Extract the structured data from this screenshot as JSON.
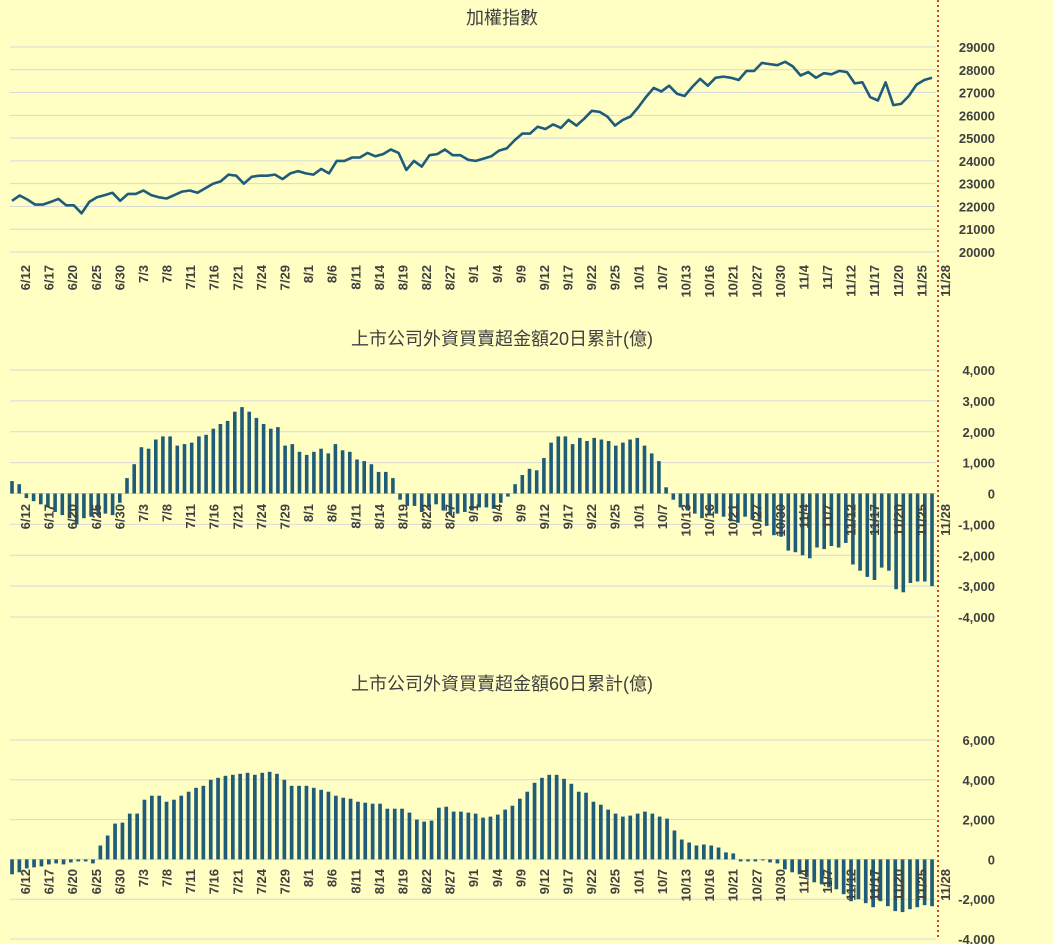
{
  "chart_data": [
    {
      "type": "line",
      "title": "加權指數",
      "xlabel": "",
      "ylabel": "",
      "ylim": [
        20000,
        29000
      ],
      "yticks": [
        "20000",
        "21000",
        "22000",
        "23000",
        "24000",
        "25000",
        "26000",
        "27000",
        "28000",
        "29000"
      ],
      "tick_labels": [
        "6/12",
        "6/17",
        "6/20",
        "6/25",
        "6/30",
        "7/3",
        "7/8",
        "7/11",
        "7/16",
        "7/21",
        "7/24",
        "7/29",
        "8/1",
        "8/6",
        "8/11",
        "8/14",
        "8/19",
        "8/22",
        "8/27",
        "9/1",
        "9/4",
        "9/9",
        "9/12",
        "9/17",
        "9/22",
        "9/25",
        "10/1",
        "10/7",
        "10/13",
        "10/16",
        "10/21",
        "10/27",
        "10/30",
        "11/4",
        "11/7",
        "11/12",
        "11/17",
        "11/20",
        "11/25",
        "11/28"
      ],
      "series": [
        {
          "name": "加權指數",
          "color": "#1F5C7A",
          "values": [
            22250,
            22480,
            22300,
            22080,
            22080,
            22200,
            22330,
            22050,
            22050,
            21700,
            22200,
            22400,
            22500,
            22600,
            22250,
            22550,
            22550,
            22700,
            22500,
            22400,
            22350,
            22500,
            22650,
            22700,
            22600,
            22800,
            23000,
            23100,
            23400,
            23350,
            23000,
            23300,
            23350,
            23350,
            23400,
            23200,
            23450,
            23550,
            23450,
            23400,
            23650,
            23450,
            24000,
            24000,
            24150,
            24150,
            24350,
            24200,
            24300,
            24500,
            24350,
            23600,
            24000,
            23750,
            24250,
            24300,
            24500,
            24250,
            24250,
            24050,
            24000,
            24100,
            24200,
            24450,
            24550,
            24900,
            25200,
            25200,
            25500,
            25400,
            25600,
            25450,
            25800,
            25550,
            25850,
            26200,
            26150,
            25950,
            25550,
            25800,
            25950,
            26350,
            26800,
            27200,
            27050,
            27300,
            26950,
            26850,
            27250,
            27600,
            27300,
            27650,
            27700,
            27650,
            27550,
            27950,
            27950,
            28300,
            28250,
            28200,
            28350,
            28150,
            27750,
            27900,
            27650,
            27850,
            27800,
            27950,
            27900,
            27400,
            27450,
            26800,
            26650,
            27450,
            26450,
            26500,
            26850,
            27350,
            27550,
            27650
          ]
        }
      ]
    },
    {
      "type": "bar",
      "title": "上市公司外資買賣超金額20日累計(億)",
      "xlabel": "",
      "ylabel": "",
      "ylim": [
        -4000,
        4000
      ],
      "yticks": [
        "4,000",
        "3,000",
        "2,000",
        "1,000",
        "0",
        "-1,000",
        "-2,000",
        "-3,000",
        "-4,000"
      ],
      "tick_labels": [
        "6/12",
        "6/17",
        "6/20",
        "6/25",
        "6/30",
        "7/3",
        "7/8",
        "7/11",
        "7/16",
        "7/21",
        "7/24",
        "7/29",
        "8/1",
        "8/6",
        "8/11",
        "8/14",
        "8/19",
        "8/22",
        "8/27",
        "9/1",
        "9/4",
        "9/9",
        "9/12",
        "9/17",
        "9/22",
        "9/25",
        "10/1",
        "10/7",
        "10/13",
        "10/16",
        "10/21",
        "10/27",
        "10/30",
        "11/4",
        "11/7",
        "11/12",
        "11/17",
        "11/20",
        "11/25",
        "11/28"
      ],
      "series": [
        {
          "name": "20日累計",
          "color": "#1F5C7A",
          "values": [
            400,
            300,
            -150,
            -250,
            -350,
            -450,
            -600,
            -700,
            -800,
            -1000,
            -800,
            -750,
            -700,
            -650,
            -700,
            -300,
            500,
            950,
            1500,
            1450,
            1750,
            1850,
            1850,
            1550,
            1600,
            1650,
            1850,
            1900,
            2100,
            2250,
            2350,
            2650,
            2800,
            2650,
            2450,
            2250,
            2100,
            2150,
            1550,
            1600,
            1350,
            1250,
            1350,
            1450,
            1300,
            1600,
            1400,
            1350,
            1100,
            1050,
            950,
            700,
            700,
            500,
            -200,
            -400,
            -400,
            -600,
            -450,
            -350,
            -550,
            -700,
            -650,
            -600,
            -550,
            -450,
            -450,
            -500,
            -300,
            -100,
            300,
            600,
            800,
            750,
            1150,
            1650,
            1850,
            1850,
            1600,
            1800,
            1700,
            1800,
            1750,
            1700,
            1550,
            1650,
            1750,
            1800,
            1550,
            1300,
            1050,
            200,
            -200,
            -450,
            -550,
            -650,
            -800,
            -700,
            -650,
            -750,
            -900,
            -950,
            -750,
            -850,
            -900,
            -1050,
            -1350,
            -1400,
            -1850,
            -1900,
            -2000,
            -2100,
            -1750,
            -1800,
            -1700,
            -1750,
            -1600,
            -2300,
            -2500,
            -2700,
            -2800,
            -2400,
            -2500,
            -3100,
            -3200,
            -2900,
            -2850,
            -2850,
            -3000
          ]
        }
      ]
    },
    {
      "type": "bar",
      "title": "上市公司外資買賣超金額60日累計(億)",
      "xlabel": "",
      "ylabel": "",
      "ylim": [
        -4000,
        6000
      ],
      "yticks": [
        "6,000",
        "4,000",
        "2,000",
        "0",
        "-2,000",
        "-4,000"
      ],
      "tick_labels": [
        "6/12",
        "6/17",
        "6/20",
        "6/25",
        "6/30",
        "7/3",
        "7/8",
        "7/11",
        "7/16",
        "7/21",
        "7/24",
        "7/29",
        "8/1",
        "8/6",
        "8/11",
        "8/14",
        "8/19",
        "8/22",
        "8/27",
        "9/1",
        "9/4",
        "9/9",
        "9/12",
        "9/17",
        "9/22",
        "9/25",
        "10/1",
        "10/7",
        "10/13",
        "10/16",
        "10/21",
        "10/27",
        "10/30",
        "11/4",
        "11/7",
        "11/12",
        "11/17",
        "11/20",
        "11/25",
        "11/28"
      ],
      "series": [
        {
          "name": "60日累計",
          "color": "#1F5C7A",
          "values": [
            -750,
            -650,
            -450,
            -400,
            -350,
            -250,
            -200,
            -250,
            -150,
            -100,
            -100,
            -200,
            700,
            1200,
            1800,
            1850,
            2300,
            2300,
            3000,
            3200,
            3200,
            2900,
            3000,
            3200,
            3400,
            3600,
            3700,
            4000,
            4100,
            4200,
            4250,
            4300,
            4350,
            4250,
            4350,
            4400,
            4300,
            4000,
            3700,
            3700,
            3700,
            3600,
            3500,
            3400,
            3200,
            3100,
            3050,
            2900,
            2850,
            2800,
            2800,
            2550,
            2550,
            2550,
            2350,
            2000,
            1900,
            1950,
            2600,
            2650,
            2400,
            2400,
            2350,
            2300,
            2100,
            2150,
            2250,
            2500,
            2700,
            3050,
            3400,
            3850,
            4100,
            4250,
            4250,
            4050,
            3800,
            3400,
            3350,
            2900,
            2750,
            2500,
            2300,
            2150,
            2200,
            2300,
            2400,
            2300,
            2150,
            2050,
            1450,
            1000,
            850,
            700,
            750,
            700,
            600,
            350,
            300,
            -100,
            -100,
            -100,
            -50,
            -150,
            -200,
            -500,
            -650,
            -750,
            -900,
            -1150,
            -1250,
            -1400,
            -1500,
            -1750,
            -2100,
            -2000,
            -2200,
            -2400,
            -2100,
            -2350,
            -2600,
            -2650,
            -2500,
            -2400,
            -2300,
            -2350
          ]
        }
      ]
    }
  ]
}
